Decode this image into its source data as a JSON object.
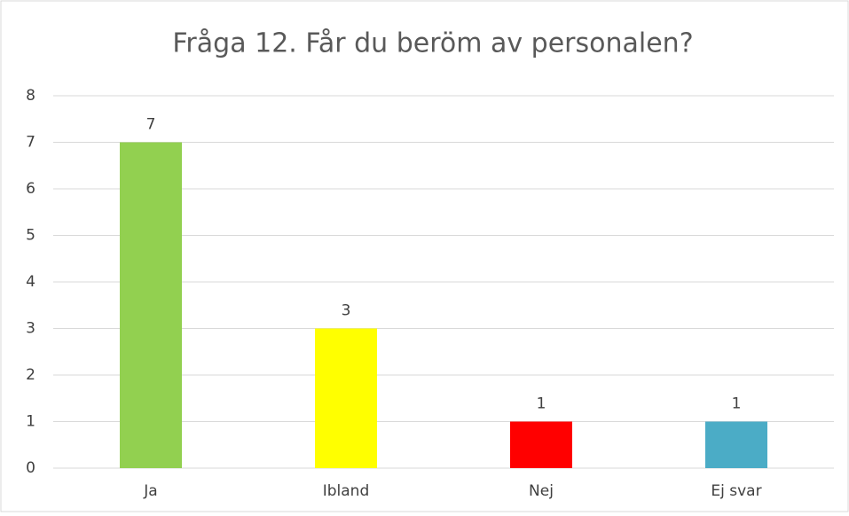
{
  "chart_data": {
    "type": "bar",
    "title": "Fråga 12. Får du beröm av personalen?",
    "categories": [
      "Ja",
      "Ibland",
      "Nej",
      "Ej svar"
    ],
    "values": [
      7,
      3,
      1,
      1
    ],
    "colors": [
      "#92d050",
      "#ffff00",
      "#ff0000",
      "#4bacc6"
    ],
    "ylim": [
      0,
      8
    ],
    "yticks": [
      0,
      1,
      2,
      3,
      4,
      5,
      6,
      7,
      8
    ],
    "grid": true
  }
}
